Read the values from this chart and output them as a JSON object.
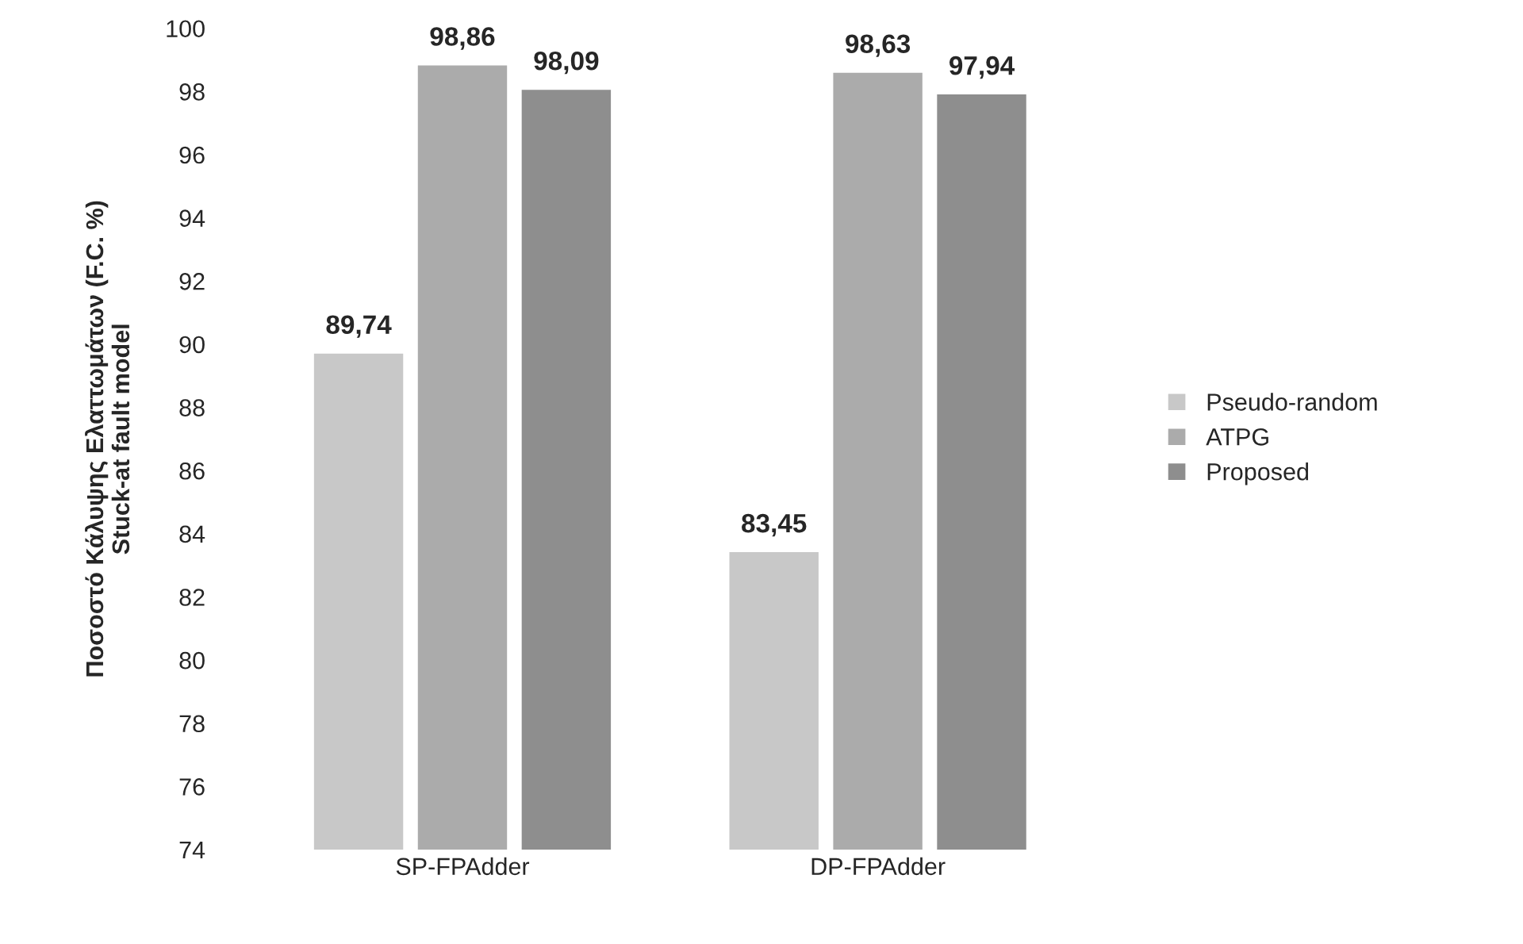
{
  "chart_data": {
    "type": "bar",
    "ylabel": "Ποσοστό Κάλυψης Ελαττωμάτων (F.C. %)\nStuck-at fault model",
    "categories": [
      "SP-FPAdder",
      "DP-FPAdder"
    ],
    "series": [
      {
        "name": "Pseudo-random",
        "color": "#c8c8c8",
        "values": [
          89.74,
          83.45
        ],
        "value_labels": [
          "89,74",
          "83,45"
        ]
      },
      {
        "name": "ATPG",
        "color": "#ababab",
        "values": [
          98.86,
          98.63
        ],
        "value_labels": [
          "98,86",
          "98,63"
        ]
      },
      {
        "name": "Proposed",
        "color": "#8e8e8e",
        "values": [
          98.09,
          97.94
        ],
        "value_labels": [
          "98,09",
          "97,94"
        ]
      }
    ],
    "ylim": [
      74,
      100
    ],
    "yticks": [
      74,
      76,
      78,
      80,
      82,
      84,
      86,
      88,
      90,
      92,
      94,
      96,
      98,
      100
    ],
    "grid": false,
    "legend": "right"
  }
}
